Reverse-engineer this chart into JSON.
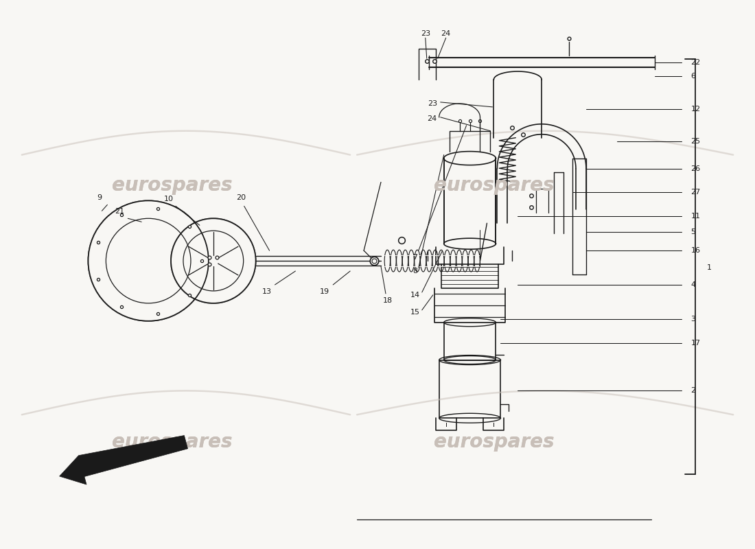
{
  "bg_color": "#f8f7f4",
  "line_color": "#1a1a1a",
  "watermark_color": "#c8bfb8",
  "figsize": [
    11.0,
    8.0
  ],
  "dpi": 100,
  "xlim": [
    0,
    11
  ],
  "ylim": [
    0,
    8
  ]
}
